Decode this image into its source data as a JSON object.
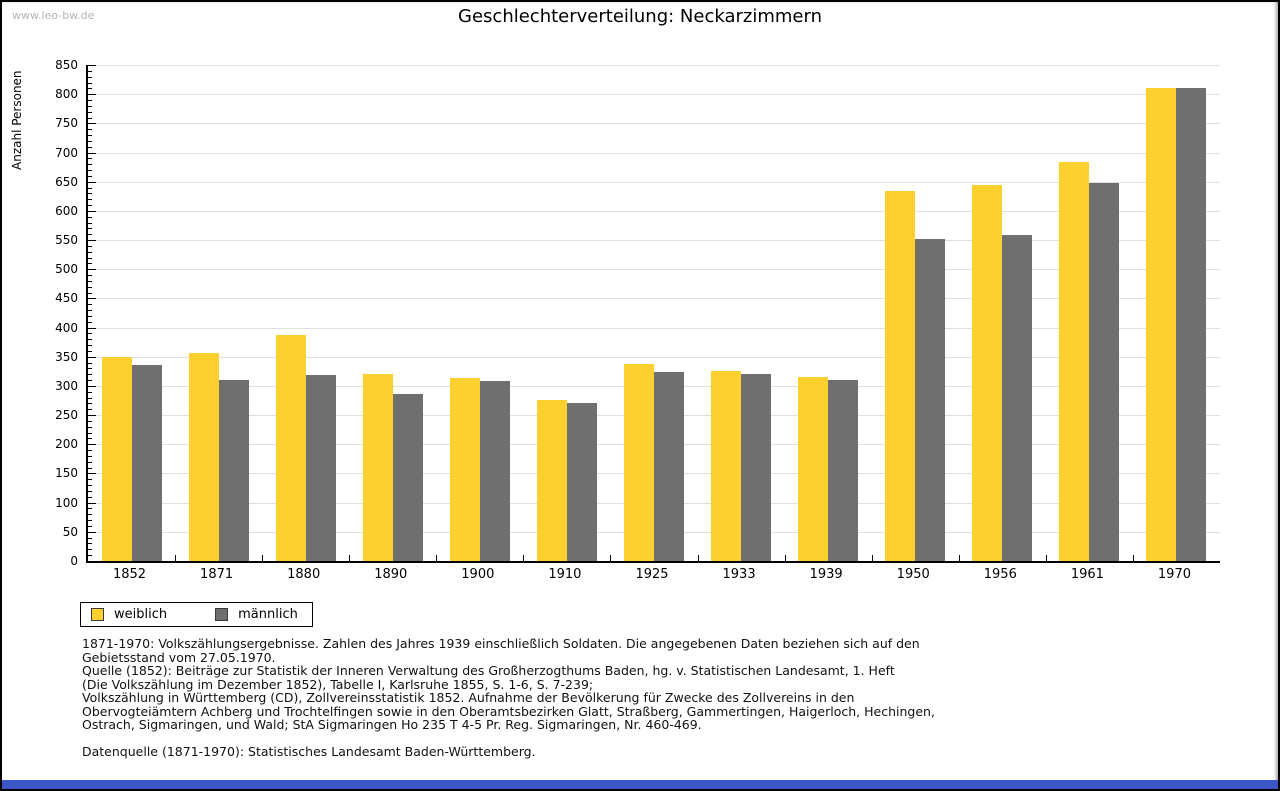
{
  "watermark": "www.leo-bw.de",
  "title": "Geschlechterverteilung: Neckarzimmern",
  "chart_data": {
    "type": "bar",
    "title": "Geschlechterverteilung: Neckarzimmern",
    "xlabel": "",
    "ylabel": "Anzahl Personen",
    "ylim": [
      0,
      850
    ],
    "ytick_step": 50,
    "ytick_minor_step": 10,
    "grid": true,
    "legend_position": "bottom-left",
    "categories": [
      "1852",
      "1871",
      "1880",
      "1890",
      "1900",
      "1910",
      "1925",
      "1933",
      "1939",
      "1950",
      "1956",
      "1961",
      "1970"
    ],
    "series": [
      {
        "name": "weiblich",
        "color": "#FCD12F",
        "values": [
          350,
          357,
          388,
          321,
          313,
          276,
          338,
          326,
          315,
          634,
          645,
          684,
          810
        ]
      },
      {
        "name": "männlich",
        "color": "#6F6F6F",
        "values": [
          336,
          310,
          319,
          286,
          309,
          271,
          324,
          321,
          310,
          552,
          559,
          647,
          810
        ]
      }
    ]
  },
  "legend": {
    "items": [
      {
        "label": "weiblich",
        "color": "#FCD12F"
      },
      {
        "label": "männlich",
        "color": "#6F6F6F"
      }
    ]
  },
  "footnotes": {
    "lines": [
      "1871-1970: Volkszählungsergebnisse. Zahlen des Jahres 1939 einschließlich Soldaten. Die angegebenen Daten beziehen sich auf den",
      "Gebietsstand vom 27.05.1970.",
      "Quelle (1852): Beiträge zur Statistik der Inneren Verwaltung des Großherzogthums Baden, hg. v. Statistischen Landesamt, 1. Heft",
      "(Die Volkszählung im Dezember 1852), Tabelle I, Karlsruhe 1855, S. 1-6, S. 7-239;",
      "Volkszählung in Württemberg (CD), Zollvereinsstatistik 1852. Aufnahme der Bevölkerung für Zwecke des Zollvereins in den",
      "Obervogteiämtern Achberg und Trochtelfingen sowie in den Oberamtsbezirken Glatt, Straßberg, Gammertingen, Haigerloch, Hechingen,",
      "Ostrach, Sigmaringen, und Wald; StA Sigmaringen Ho 235 T 4-5 Pr. Reg. Sigmaringen, Nr. 460-469."
    ],
    "datasource": "Datenquelle (1871-1970): Statistisches Landesamt Baden-Württemberg."
  },
  "colors": {
    "bar_weiblich": "#FCD12F",
    "bar_maennlich": "#6F6F6F",
    "gridline": "#DFDFDF",
    "axis": "#000000",
    "watermark": "#B4B4B4",
    "bottom_strip": "#3A57C5"
  }
}
